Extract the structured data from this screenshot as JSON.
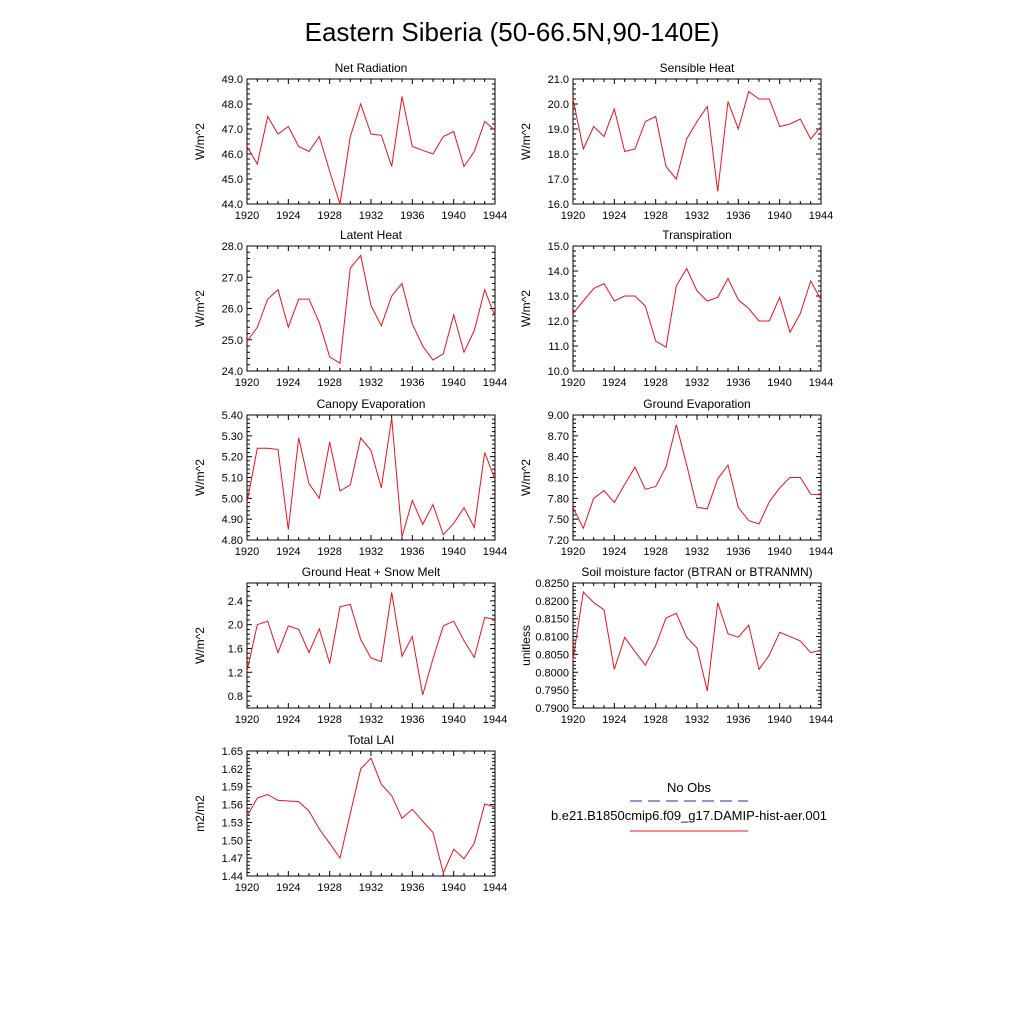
{
  "figure": {
    "title": "Eastern Siberia (50-66.5N,90-140E)",
    "line_color": "#e8141c",
    "obs_color": "#2a2a9c"
  },
  "legend": {
    "obs_label": "No Obs",
    "model_label": "b.e21.B1850cmip6.f09_g17.DAMIP-hist-aer.001"
  },
  "chart_data": [
    {
      "type": "line",
      "title": "Net Radiation",
      "ylabel": "W/m^2",
      "xlim": [
        1920,
        1944
      ],
      "ylim": [
        44.0,
        49.0
      ],
      "xticks": [
        1920,
        1924,
        1928,
        1932,
        1936,
        1940,
        1944
      ],
      "yticks": [
        "44.0",
        "45.0",
        "46.0",
        "47.0",
        "48.0",
        "49.0"
      ],
      "series": [
        {
          "x": [
            1920,
            1921,
            1922,
            1923,
            1924,
            1925,
            1926,
            1927,
            1928,
            1929,
            1930,
            1931,
            1932,
            1933,
            1934,
            1935,
            1936,
            1937,
            1938,
            1939,
            1940,
            1941,
            1942,
            1943,
            1944
          ],
          "values": [
            46.3,
            45.6,
            47.5,
            46.8,
            47.1,
            46.3,
            46.1,
            46.7,
            45.3,
            44.0,
            46.7,
            48.0,
            46.8,
            46.75,
            45.5,
            48.3,
            46.3,
            46.15,
            46.0,
            46.7,
            46.9,
            45.5,
            46.1,
            47.3,
            46.95
          ]
        }
      ]
    },
    {
      "type": "line",
      "title": "Sensible Heat",
      "ylabel": "W/m^2",
      "xlim": [
        1920,
        1944
      ],
      "ylim": [
        16.0,
        21.0
      ],
      "xticks": [
        1920,
        1924,
        1928,
        1932,
        1936,
        1940,
        1944
      ],
      "yticks": [
        "16.0",
        "17.0",
        "18.0",
        "19.0",
        "20.0",
        "21.0"
      ],
      "series": [
        {
          "x": [
            1920,
            1921,
            1922,
            1923,
            1924,
            1925,
            1926,
            1927,
            1928,
            1929,
            1930,
            1931,
            1932,
            1933,
            1934,
            1935,
            1936,
            1937,
            1938,
            1939,
            1940,
            1941,
            1942,
            1943,
            1944
          ],
          "values": [
            20.2,
            18.2,
            19.1,
            18.7,
            19.8,
            18.1,
            18.2,
            19.3,
            19.5,
            17.5,
            17.0,
            18.6,
            19.3,
            19.9,
            16.5,
            20.1,
            19.0,
            20.5,
            20.2,
            20.2,
            19.1,
            19.2,
            19.4,
            18.6,
            19.1
          ]
        }
      ]
    },
    {
      "type": "line",
      "title": "Latent Heat",
      "ylabel": "W/m^2",
      "xlim": [
        1920,
        1944
      ],
      "ylim": [
        24.0,
        28.0
      ],
      "xticks": [
        1920,
        1924,
        1928,
        1932,
        1936,
        1940,
        1944
      ],
      "yticks": [
        "24.0",
        "25.0",
        "26.0",
        "27.0",
        "28.0"
      ],
      "series": [
        {
          "x": [
            1920,
            1921,
            1922,
            1923,
            1924,
            1925,
            1926,
            1927,
            1928,
            1929,
            1930,
            1931,
            1932,
            1933,
            1934,
            1935,
            1936,
            1937,
            1938,
            1939,
            1940,
            1941,
            1942,
            1943,
            1944
          ],
          "values": [
            24.95,
            25.4,
            26.3,
            26.6,
            25.4,
            26.3,
            26.3,
            25.55,
            24.45,
            24.25,
            27.3,
            27.7,
            26.1,
            25.45,
            26.4,
            26.8,
            25.5,
            24.8,
            24.35,
            24.55,
            25.8,
            24.6,
            25.3,
            26.6,
            25.75
          ]
        }
      ]
    },
    {
      "type": "line",
      "title": "Transpiration",
      "ylabel": "W/m^2",
      "xlim": [
        1920,
        1944
      ],
      "ylim": [
        10.0,
        15.0
      ],
      "xticks": [
        1920,
        1924,
        1928,
        1932,
        1936,
        1940,
        1944
      ],
      "yticks": [
        "10.0",
        "11.0",
        "12.0",
        "13.0",
        "14.0",
        "15.0"
      ],
      "series": [
        {
          "x": [
            1920,
            1921,
            1922,
            1923,
            1924,
            1925,
            1926,
            1927,
            1928,
            1929,
            1930,
            1931,
            1932,
            1933,
            1934,
            1935,
            1936,
            1937,
            1938,
            1939,
            1940,
            1941,
            1942,
            1943,
            1944
          ],
          "values": [
            12.3,
            12.8,
            13.3,
            13.5,
            12.8,
            13.0,
            13.0,
            12.6,
            11.2,
            10.95,
            13.4,
            14.1,
            13.2,
            12.8,
            12.95,
            13.7,
            12.85,
            12.5,
            12.0,
            12.0,
            12.95,
            11.55,
            12.3,
            13.6,
            12.85
          ]
        }
      ]
    },
    {
      "type": "line",
      "title": "Canopy Evaporation",
      "ylabel": "W/m^2",
      "xlim": [
        1920,
        1944
      ],
      "ylim": [
        4.8,
        5.4
      ],
      "xticks": [
        1920,
        1924,
        1928,
        1932,
        1936,
        1940,
        1944
      ],
      "yticks": [
        "4.80",
        "4.90",
        "5.00",
        "5.10",
        "5.20",
        "5.30",
        "5.40"
      ],
      "series": [
        {
          "x": [
            1920,
            1921,
            1922,
            1923,
            1924,
            1925,
            1926,
            1927,
            1928,
            1929,
            1930,
            1931,
            1932,
            1933,
            1934,
            1935,
            1936,
            1937,
            1938,
            1939,
            1940,
            1941,
            1942,
            1943,
            1944
          ],
          "values": [
            4.98,
            5.24,
            5.24,
            5.235,
            4.85,
            5.29,
            5.07,
            5.0,
            5.27,
            5.035,
            5.065,
            5.29,
            5.23,
            5.05,
            5.385,
            4.815,
            4.99,
            4.875,
            4.97,
            4.825,
            4.88,
            4.955,
            4.86,
            5.22,
            5.09
          ]
        }
      ]
    },
    {
      "type": "line",
      "title": "Ground Evaporation",
      "ylabel": "W/m^2",
      "xlim": [
        1920,
        1944
      ],
      "ylim": [
        7.2,
        9.0
      ],
      "xticks": [
        1920,
        1924,
        1928,
        1932,
        1936,
        1940,
        1944
      ],
      "yticks": [
        "7.20",
        "7.50",
        "7.80",
        "8.10",
        "8.40",
        "8.70",
        "9.00"
      ],
      "series": [
        {
          "x": [
            1920,
            1921,
            1922,
            1923,
            1924,
            1925,
            1926,
            1927,
            1928,
            1929,
            1930,
            1931,
            1932,
            1933,
            1934,
            1935,
            1936,
            1937,
            1938,
            1939,
            1940,
            1941,
            1942,
            1943,
            1944
          ],
          "values": [
            7.67,
            7.37,
            7.8,
            7.91,
            7.74,
            8.0,
            8.25,
            7.93,
            7.97,
            8.25,
            8.86,
            8.28,
            7.67,
            7.65,
            8.08,
            8.28,
            7.67,
            7.48,
            7.43,
            7.75,
            7.95,
            8.1,
            8.1,
            7.86,
            7.85
          ]
        }
      ]
    },
    {
      "type": "line",
      "title": "Ground Heat + Snow Melt",
      "ylabel": "W/m^2",
      "xlim": [
        1920,
        1944
      ],
      "ylim": [
        0.6,
        2.7
      ],
      "xticks": [
        1920,
        1924,
        1928,
        1932,
        1936,
        1940,
        1944
      ],
      "yticks": [
        "0.8",
        "1.2",
        "1.6",
        "2.0",
        "2.4"
      ],
      "series": [
        {
          "x": [
            1920,
            1921,
            1922,
            1923,
            1924,
            1925,
            1926,
            1927,
            1928,
            1929,
            1930,
            1931,
            1932,
            1933,
            1934,
            1935,
            1936,
            1937,
            1938,
            1939,
            1940,
            1941,
            1942,
            1943,
            1944
          ],
          "values": [
            1.22,
            2.0,
            2.06,
            1.53,
            1.98,
            1.92,
            1.53,
            1.93,
            1.35,
            2.3,
            2.34,
            1.75,
            1.44,
            1.38,
            2.54,
            1.47,
            1.8,
            0.82,
            1.43,
            1.98,
            2.06,
            1.73,
            1.45,
            2.12,
            2.09
          ]
        }
      ]
    },
    {
      "type": "line",
      "title": "Soil moisture factor (BTRAN or BTRANMN)",
      "ylabel": "unitless",
      "xlim": [
        1920,
        1944
      ],
      "ylim": [
        0.79,
        0.825
      ],
      "xticks": [
        1920,
        1924,
        1928,
        1932,
        1936,
        1940,
        1944
      ],
      "yticks": [
        "0.7900",
        "0.7950",
        "0.8000",
        "0.8050",
        "0.8100",
        "0.8150",
        "0.8200",
        "0.8250"
      ],
      "series": [
        {
          "x": [
            1920,
            1921,
            1922,
            1923,
            1924,
            1925,
            1926,
            1927,
            1928,
            1929,
            1930,
            1931,
            1932,
            1933,
            1934,
            1935,
            1936,
            1937,
            1938,
            1939,
            1940,
            1941,
            1942,
            1943,
            1944
          ],
          "values": [
            0.8035,
            0.8225,
            0.8195,
            0.8175,
            0.8008,
            0.8098,
            0.8058,
            0.802,
            0.8075,
            0.8152,
            0.8165,
            0.8098,
            0.8068,
            0.7948,
            0.8195,
            0.8108,
            0.8098,
            0.8132,
            0.8008,
            0.8048,
            0.8112,
            0.81,
            0.8088,
            0.8055,
            0.8062
          ]
        }
      ]
    },
    {
      "type": "line",
      "title": "Total LAI",
      "ylabel": "m2/m2",
      "xlim": [
        1920,
        1944
      ],
      "ylim": [
        1.44,
        1.65
      ],
      "xticks": [
        1920,
        1924,
        1928,
        1932,
        1936,
        1940,
        1944
      ],
      "yticks": [
        "1.44",
        "1.47",
        "1.50",
        "1.53",
        "1.56",
        "1.59",
        "1.62",
        "1.65"
      ],
      "series": [
        {
          "x": [
            1920,
            1921,
            1922,
            1923,
            1924,
            1925,
            1926,
            1927,
            1928,
            1929,
            1930,
            1931,
            1932,
            1933,
            1934,
            1935,
            1936,
            1937,
            1938,
            1939,
            1940,
            1941,
            1942,
            1943,
            1944
          ],
          "values": [
            1.54,
            1.571,
            1.577,
            1.567,
            1.566,
            1.565,
            1.549,
            1.519,
            1.495,
            1.47,
            1.545,
            1.62,
            1.638,
            1.594,
            1.575,
            1.537,
            1.552,
            1.532,
            1.513,
            1.445,
            1.485,
            1.469,
            1.495,
            1.561,
            1.556
          ]
        }
      ]
    }
  ]
}
